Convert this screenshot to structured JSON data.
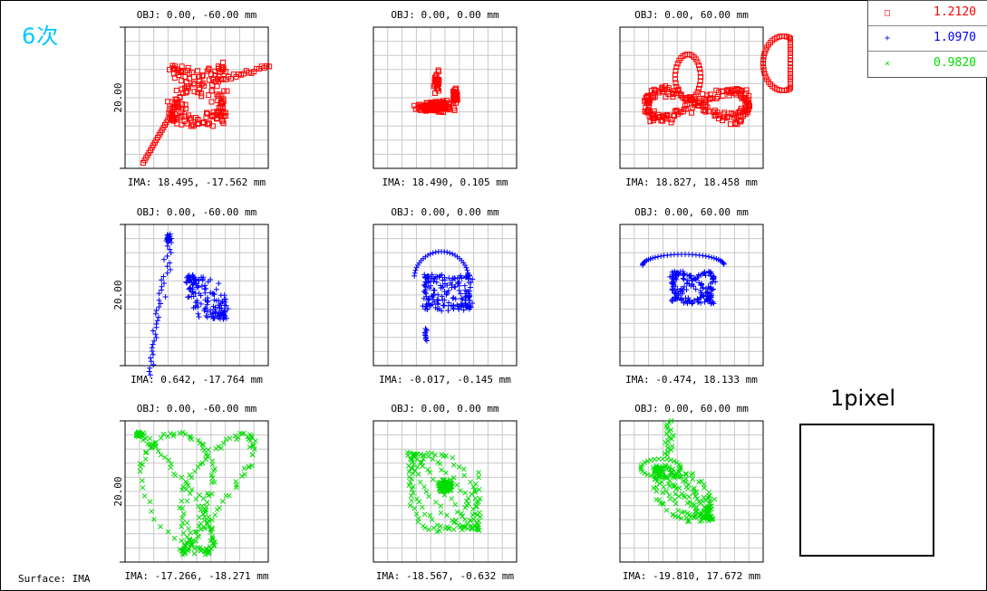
{
  "app_label": "6次",
  "surface_label": "Surface: IMA",
  "pixel_box_label": "1pixel",
  "legend": [
    {
      "marker": "square",
      "wavelength": "1.2120",
      "color": "#ff0000"
    },
    {
      "marker": "plus",
      "wavelength": "1.0970",
      "color": "#0000ff"
    },
    {
      "marker": "x",
      "wavelength": "0.9820",
      "color": "#00dd00"
    }
  ],
  "chart_data": [
    {
      "type": "scatter",
      "obj": "OBJ: 0.00, -60.00 mm",
      "ima": "IMA: 18.495, -17.562 mm",
      "ylabel": "20.00",
      "marker": "square",
      "color": "#ff0000",
      "shape": "red-left"
    },
    {
      "type": "scatter",
      "obj": "OBJ: 0.00, 0.00 mm",
      "ima": "IMA: 18.490, 0.105 mm",
      "ylabel": "",
      "marker": "square",
      "color": "#ff0000",
      "shape": "red-center"
    },
    {
      "type": "scatter",
      "obj": "OBJ: 0.00, 60.00 mm",
      "ima": "IMA: 18.827, 18.458 mm",
      "ylabel": "",
      "marker": "square",
      "color": "#ff0000",
      "shape": "red-right"
    },
    {
      "type": "scatter",
      "obj": "OBJ: 0.00, -60.00 mm",
      "ima": "IMA: 0.642, -17.764 mm",
      "ylabel": "20.00",
      "marker": "plus",
      "color": "#0000ff",
      "shape": "blue-left"
    },
    {
      "type": "scatter",
      "obj": "OBJ: 0.00, 0.00 mm",
      "ima": "IMA: -0.017, -0.145 mm",
      "ylabel": "",
      "marker": "plus",
      "color": "#0000ff",
      "shape": "blue-center"
    },
    {
      "type": "scatter",
      "obj": "OBJ: 0.00, 60.00 mm",
      "ima": "IMA: -0.474, 18.133 mm",
      "ylabel": "",
      "marker": "plus",
      "color": "#0000ff",
      "shape": "blue-right"
    },
    {
      "type": "scatter",
      "obj": "OBJ: 0.00, -60.00 mm",
      "ima": "IMA: -17.266, -18.271 mm",
      "ylabel": "20.00",
      "marker": "x",
      "color": "#00dd00",
      "shape": "green-left"
    },
    {
      "type": "scatter",
      "obj": "OBJ: 0.00, 0.00 mm",
      "ima": "IMA: -18.567, -0.632 mm",
      "ylabel": "",
      "marker": "x",
      "color": "#00dd00",
      "shape": "green-center"
    },
    {
      "type": "scatter",
      "obj": "OBJ: 0.00, 60.00 mm",
      "ima": "IMA: -19.810, 17.672 mm",
      "ylabel": "",
      "marker": "x",
      "color": "#00dd00",
      "shape": "green-right"
    }
  ]
}
